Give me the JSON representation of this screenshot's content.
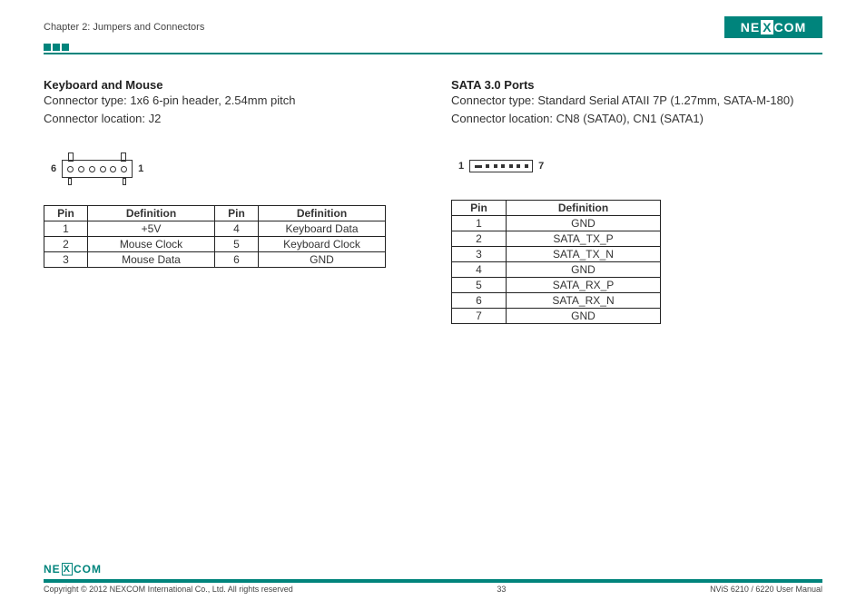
{
  "header": {
    "chapter": "Chapter 2: Jumpers and Connectors",
    "logo_text_left": "NE",
    "logo_text_x": "X",
    "logo_text_right": "COM"
  },
  "left": {
    "title": "Keyboard and Mouse",
    "line1": "Connector type: 1x6 6-pin header, 2.54mm pitch",
    "line2": "Connector location: J2",
    "diagram_left_label": "6",
    "diagram_right_label": "1",
    "table_headers": {
      "pin": "Pin",
      "def": "Definition"
    },
    "rows": [
      {
        "p1": "1",
        "d1": "+5V",
        "p2": "4",
        "d2": "Keyboard Data"
      },
      {
        "p1": "2",
        "d1": "Mouse Clock",
        "p2": "5",
        "d2": "Keyboard Clock"
      },
      {
        "p1": "3",
        "d1": "Mouse Data",
        "p2": "6",
        "d2": "GND"
      }
    ]
  },
  "right": {
    "title": "SATA 3.0 Ports",
    "line1": "Connector type: Standard Serial ATAII 7P (1.27mm, SATA-M-180)",
    "line2": "Connector location: CN8 (SATA0), CN1 (SATA1)",
    "diagram_left_label": "1",
    "diagram_right_label": "7",
    "table_headers": {
      "pin": "Pin",
      "def": "Definition"
    },
    "rows": [
      {
        "p": "1",
        "d": "GND"
      },
      {
        "p": "2",
        "d": "SATA_TX_P"
      },
      {
        "p": "3",
        "d": "SATA_TX_N"
      },
      {
        "p": "4",
        "d": "GND"
      },
      {
        "p": "5",
        "d": "SATA_RX_P"
      },
      {
        "p": "6",
        "d": "SATA_RX_N"
      },
      {
        "p": "7",
        "d": "GND"
      }
    ]
  },
  "footer": {
    "copyright": "Copyright © 2012 NEXCOM International Co., Ltd. All rights reserved",
    "page_num": "33",
    "manual": "NViS 6210 / 6220 User Manual"
  },
  "colors": {
    "brand": "#00847c",
    "text": "#333333",
    "border": "#222222",
    "bg": "#ffffff"
  }
}
